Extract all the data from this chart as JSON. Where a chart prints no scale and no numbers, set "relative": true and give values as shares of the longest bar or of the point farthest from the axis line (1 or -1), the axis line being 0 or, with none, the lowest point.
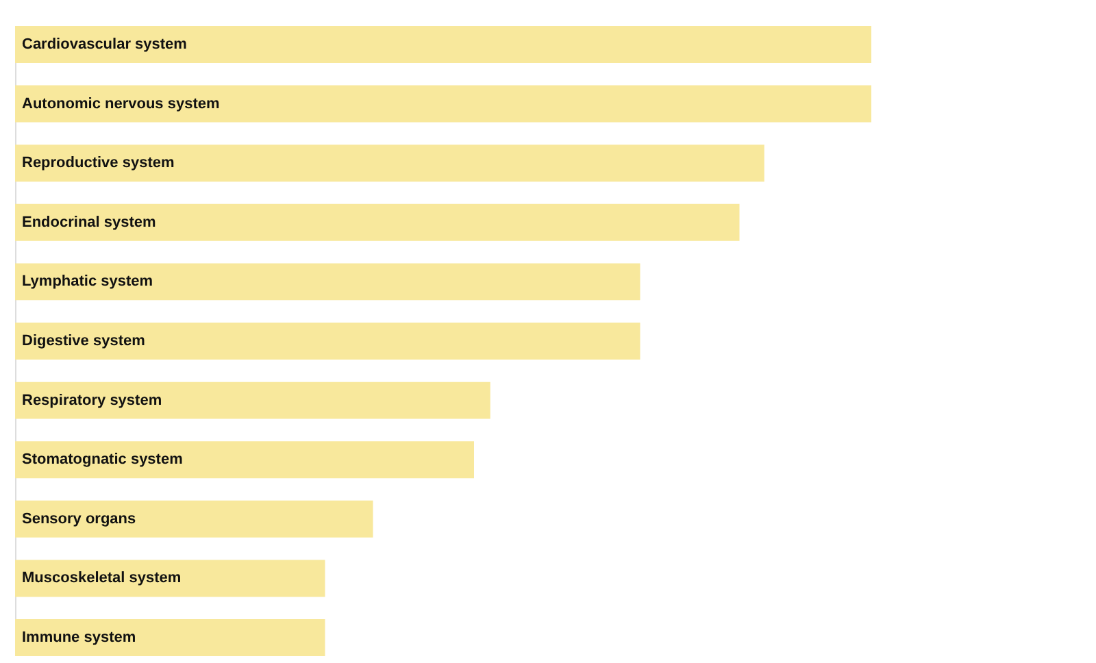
{
  "chart_data": {
    "type": "bar",
    "orientation": "horizontal",
    "relative": true,
    "categories": [
      "Cardiovascular system",
      "Autonomic nervous system",
      "Reproductive system",
      "Endocrinal system",
      "Lymphatic system",
      "Digestive system",
      "Respiratory system",
      "Stomatognatic system",
      "Sensory organs",
      "Muscoskeletal system",
      "Immune system"
    ],
    "values": [
      1,
      1,
      0.875,
      0.846,
      0.73,
      0.73,
      0.555,
      0.536,
      0.418,
      0.362,
      0.362
    ],
    "color": "#f8e89c"
  }
}
